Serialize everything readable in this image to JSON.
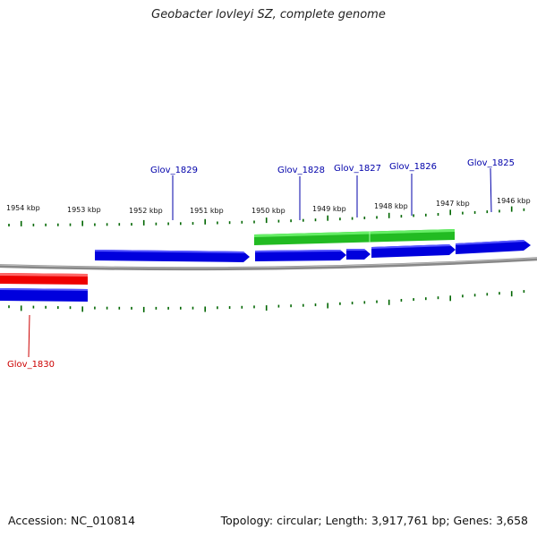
{
  "title": "Geobacter lovleyi SZ, complete genome",
  "footer": {
    "accession": "Accession: NC_010814",
    "stats": "Topology: circular; Length: 3,917,761 bp; Genes: 3,658"
  },
  "colors": {
    "forward_gene": "#0000dd",
    "reverse_gene": "#dd0000",
    "rna_gene": "#22bb22",
    "tick": "#006600",
    "backbone": "#888888",
    "label_forward": "#0000aa",
    "label_reverse": "#cc0000"
  },
  "scale_labels": [
    "1954 kbp",
    "1953 kbp",
    "1952 kbp",
    "1951 kbp",
    "1950 kbp",
    "1949 kbp",
    "1948 kbp",
    "1947 kbp",
    "1946 kbp"
  ],
  "gene_labels": [
    {
      "name": "Glov_1829",
      "strand": "forward"
    },
    {
      "name": "Glov_1828",
      "strand": "forward"
    },
    {
      "name": "Glov_1827",
      "strand": "forward"
    },
    {
      "name": "Glov_1826",
      "strand": "forward"
    },
    {
      "name": "Glov_1825",
      "strand": "forward"
    },
    {
      "name": "Glov_1830",
      "strand": "reverse"
    }
  ]
}
